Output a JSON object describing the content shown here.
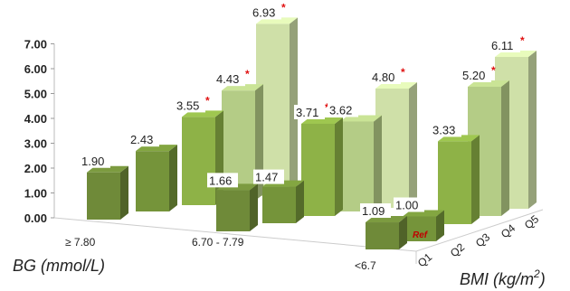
{
  "chart_data": {
    "type": "bar",
    "subtype": "3d-grouped-bar",
    "title": "",
    "ylim": [
      0,
      7
    ],
    "yticks": [
      "0.00",
      "1.00",
      "2.00",
      "3.00",
      "4.00",
      "5.00",
      "6.00",
      "7.00"
    ],
    "xlabel": "BG (mmol/L)",
    "zlabel": "BMI (kg/m",
    "zlabel_sup": "2",
    "zlabel_close": ")",
    "bg_categories": [
      "≥ 7.80",
      "6.70 -   7.79",
      "<6.7"
    ],
    "bmi_categories": [
      "Q1",
      "Q2",
      "Q3",
      "Q4",
      "Q5"
    ],
    "series": [
      {
        "name": "≥ 7.80",
        "values": [
          1.9,
          2.43,
          3.55,
          4.43,
          6.93
        ],
        "value_labels": [
          "1.90",
          "2.43",
          "3.55",
          "4.43",
          "6.93"
        ],
        "significant": [
          false,
          false,
          true,
          true,
          true
        ]
      },
      {
        "name": "6.70 -   7.79",
        "values": [
          1.66,
          1.47,
          3.71,
          3.62,
          4.8
        ],
        "value_labels": [
          "1.66",
          "1.47",
          "3.71",
          "3.62",
          "4.80"
        ],
        "significant": [
          false,
          false,
          true,
          false,
          true
        ]
      },
      {
        "name": "<6.7",
        "values": [
          1.09,
          1.0,
          3.33,
          5.2,
          6.11
        ],
        "value_labels": [
          "1.09",
          "1.00",
          "3.33",
          "5.20",
          "6.11"
        ],
        "significant": [
          false,
          false,
          false,
          true,
          true
        ]
      }
    ],
    "reference_label": "Ref",
    "significance_marker": "*",
    "colors": {
      "Q1": "#6f8a39",
      "Q2": "#75943a",
      "Q3": "#8eb247",
      "Q4": "#b4cc86",
      "Q5": "#cfe0a8"
    },
    "grid": false,
    "legend": "none"
  }
}
